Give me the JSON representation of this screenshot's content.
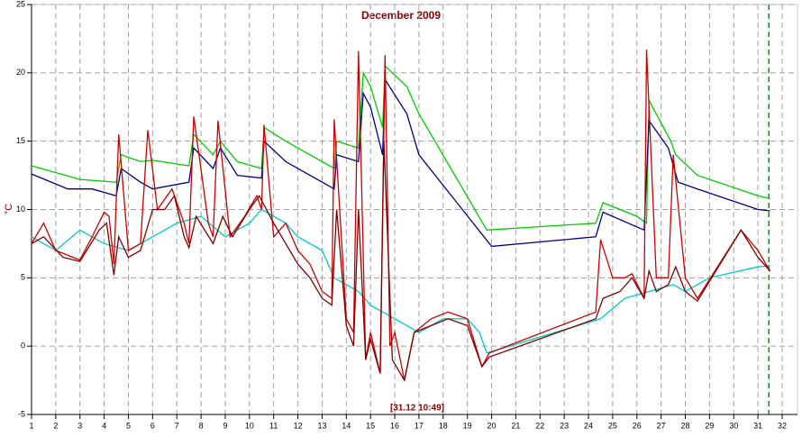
{
  "chart_data": {
    "type": "line",
    "title": "December 2009",
    "y_label": "°C",
    "annotation": "[31.12 10:49]",
    "xlim": [
      1,
      32
    ],
    "ylim": [
      -5,
      25
    ],
    "xticks": [
      1,
      2,
      3,
      4,
      5,
      6,
      7,
      8,
      9,
      10,
      11,
      12,
      13,
      14,
      15,
      16,
      17,
      18,
      19,
      20,
      21,
      22,
      23,
      24,
      25,
      26,
      27,
      28,
      29,
      30,
      31,
      32
    ],
    "yticks": [
      -5,
      0,
      5,
      10,
      15,
      20,
      25
    ],
    "grid": true,
    "now_x": 31.45,
    "now_color": "#00a000",
    "series": [
      {
        "color": "#00cc00",
        "x": [
          1,
          3,
          4.5,
          4.7,
          5.5,
          6,
          7.5,
          7.7,
          8.5,
          8.8,
          9.5,
          10.5,
          10.6,
          11.5,
          12.5,
          13.5,
          13.6,
          14.5,
          14.7,
          15,
          15.5,
          15.6,
          16.5,
          17,
          19.8,
          24.3,
          24.6,
          26,
          26.4,
          26.5,
          27.4,
          27.6,
          28.5,
          31,
          31.5
        ],
        "values": [
          13.2,
          12.2,
          12,
          14,
          13.5,
          13.6,
          13.2,
          15.5,
          14,
          15,
          13.5,
          13,
          16,
          15,
          14,
          13,
          15,
          14.5,
          20,
          19,
          16,
          20.5,
          19,
          17,
          8.5,
          9,
          10.5,
          9.5,
          9,
          18,
          15,
          14,
          12.5,
          11,
          10.8
        ]
      },
      {
        "color": "#000080",
        "x": [
          1,
          2.5,
          3.5,
          4.5,
          4.7,
          5.5,
          6,
          7.5,
          7.7,
          8.5,
          8.8,
          9.5,
          10.5,
          10.6,
          11.5,
          12.5,
          13.5,
          13.6,
          14.5,
          14.7,
          15,
          15.5,
          15.6,
          16.5,
          17,
          20,
          24.3,
          24.6,
          26.3,
          26.5,
          27.3,
          27.7,
          28.5,
          31,
          31.5
        ],
        "values": [
          12.6,
          11.5,
          11.5,
          11,
          13,
          12,
          11.5,
          12,
          14.5,
          13,
          14.5,
          12.5,
          12.3,
          15,
          13.5,
          12.5,
          11.5,
          14,
          13.5,
          18.5,
          17.5,
          14,
          19.5,
          17,
          14,
          7.3,
          8,
          9.8,
          8.5,
          16.5,
          14.5,
          12,
          11.5,
          10,
          9.9
        ]
      },
      {
        "color": "#00cccc",
        "x": [
          1,
          2,
          3,
          4,
          5,
          6,
          7,
          8,
          9,
          10,
          10.5,
          11.5,
          12,
          13,
          13.5,
          14.5,
          15,
          16,
          17,
          18,
          19,
          19.5,
          19.8,
          24.5,
          25.5,
          26.5,
          27.5,
          28,
          29,
          31,
          31.5
        ],
        "values": [
          8,
          7,
          8.5,
          7.5,
          7,
          8,
          9,
          9.5,
          8,
          9,
          10,
          9,
          8,
          7,
          5,
          4,
          3,
          2,
          1,
          2,
          2,
          1,
          -0.5,
          2,
          3.5,
          4,
          4.5,
          4,
          5,
          5.8,
          5.9
        ]
      },
      {
        "color": "#cc0000",
        "x": [
          1,
          1.5,
          2,
          3,
          3.5,
          4,
          4.2,
          4.4,
          4.6,
          5,
          5.5,
          5.8,
          6.2,
          6.8,
          7.3,
          7.5,
          7.7,
          8.3,
          8.5,
          8.7,
          9.2,
          9.8,
          10.3,
          10.5,
          10.6,
          11,
          11.5,
          12,
          12.5,
          13,
          13.4,
          13.5,
          14,
          14.3,
          14.5,
          14.8,
          15,
          15.4,
          15.6,
          15.8,
          16,
          16.4,
          16.8,
          17.5,
          18.2,
          19,
          19.6,
          19.9,
          24.3,
          24.5,
          25,
          25.5,
          25.8,
          26.3,
          26.4,
          26.8,
          27.3,
          27.5,
          28,
          28.5,
          30.3,
          31,
          31.5
        ],
        "values": [
          7.5,
          9,
          7,
          6.3,
          8,
          9.8,
          9.5,
          6,
          15.5,
          7,
          7.5,
          15.8,
          10,
          11.5,
          9,
          7.5,
          16.8,
          9,
          8,
          16.5,
          8,
          9.5,
          11,
          10,
          16.2,
          8,
          9,
          7,
          6,
          4,
          3.5,
          16.6,
          2,
          1,
          21.6,
          -1,
          1,
          -2,
          21.3,
          0,
          1,
          -2.5,
          1,
          2,
          2.5,
          2,
          -1.5,
          -0.5,
          2.5,
          7.8,
          5,
          5,
          5.3,
          3.5,
          21.7,
          5,
          5,
          14,
          5,
          3.5,
          8.5,
          7,
          5.5
        ]
      },
      {
        "color": "#800000",
        "x": [
          1,
          1.5,
          2.3,
          3,
          3.8,
          4.1,
          4.4,
          4.6,
          5,
          5.5,
          6,
          6.5,
          6.9,
          7.3,
          7.5,
          7.8,
          8.5,
          8.9,
          9.3,
          10,
          10.4,
          11,
          12,
          12.5,
          13,
          13.4,
          13.6,
          14,
          14.3,
          14.5,
          14.8,
          15,
          15.4,
          15.55,
          15.9,
          16.4,
          16.8,
          17.5,
          18.2,
          19,
          19.6,
          19.9,
          24.3,
          24.6,
          25.3,
          25.8,
          26.3,
          26.5,
          26.8,
          27.3,
          27.6,
          28,
          28.5,
          30.3,
          31,
          31.5
        ],
        "values": [
          7.5,
          8,
          6.5,
          6.2,
          8.5,
          9,
          5.2,
          8,
          6.5,
          7,
          10,
          10,
          11,
          8,
          7.2,
          9.5,
          7.5,
          9.5,
          8,
          10,
          11,
          9,
          6,
          5,
          3.5,
          3,
          10,
          1.5,
          0,
          10,
          -1,
          0.5,
          -2,
          15,
          -1,
          -2.5,
          1,
          1.5,
          2,
          1.5,
          -1.5,
          -0.8,
          2,
          3.5,
          4,
          5,
          3.5,
          5.5,
          4,
          4.5,
          5.8,
          4,
          3.3,
          8.5,
          6.5,
          5.5
        ]
      }
    ]
  }
}
